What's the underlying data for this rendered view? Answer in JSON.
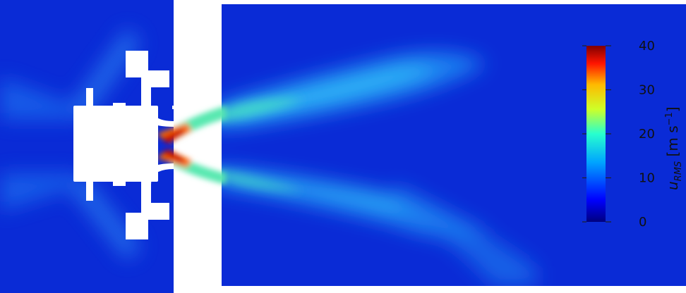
{
  "colorbar": {
    "quantity_symbol": "u",
    "quantity_subscript": "RMS",
    "unit": "[m s",
    "unit_exponent": "−1",
    "unit_close": "]",
    "min": 0,
    "max": 40,
    "ticks": [
      "0",
      "10",
      "20",
      "30",
      "40"
    ],
    "colormap": [
      "#00007f",
      "#0000ff",
      "#00a5ff",
      "#28ffce",
      "#ceff28",
      "#ffb900",
      "#ff1400",
      "#7f0000"
    ]
  },
  "field": {
    "background": "#0a2bd6",
    "jet_core_value": 40,
    "shear_layer_value": 22,
    "outer_jet_value": 14,
    "ambient_value": 3
  }
}
